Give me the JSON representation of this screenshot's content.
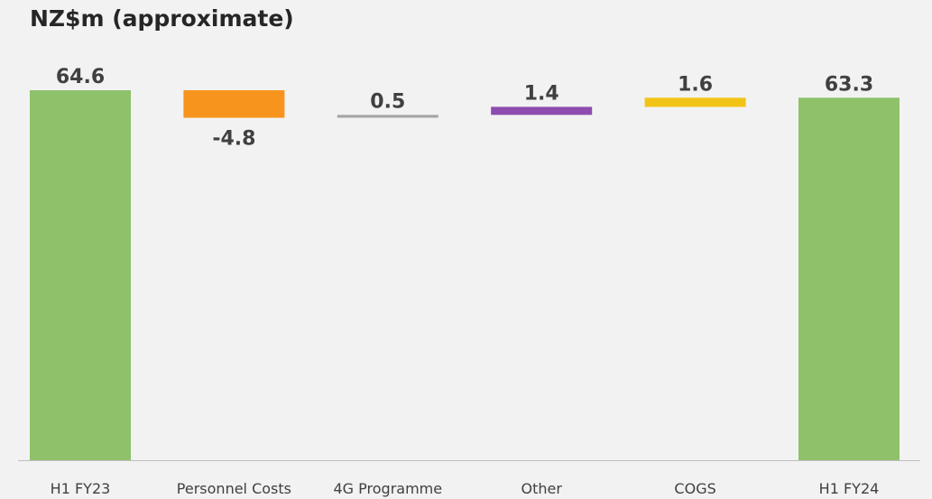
{
  "title": "NZ$m (approximate)",
  "chart_data": {
    "type": "waterfall",
    "title": "NZ$m (approximate)",
    "categories": [
      "H1 FY23",
      "Personnel Costs",
      "4G Programme",
      "Other",
      "COGS",
      "H1 FY24"
    ],
    "values": [
      64.6,
      -4.8,
      0.5,
      1.4,
      1.6,
      63.3
    ],
    "value_labels": [
      "64.6",
      "-4.8",
      "0.5",
      "1.4",
      "1.6",
      "63.3"
    ],
    "kinds": [
      "total",
      "delta",
      "delta",
      "delta",
      "delta",
      "total"
    ],
    "colors": [
      "#8fc16a",
      "#f7941d",
      "#a6a6a6",
      "#8e4bb0",
      "#f2c317",
      "#8fc16a"
    ],
    "ylim": [
      0,
      66
    ],
    "grid": false,
    "legend": "none"
  }
}
